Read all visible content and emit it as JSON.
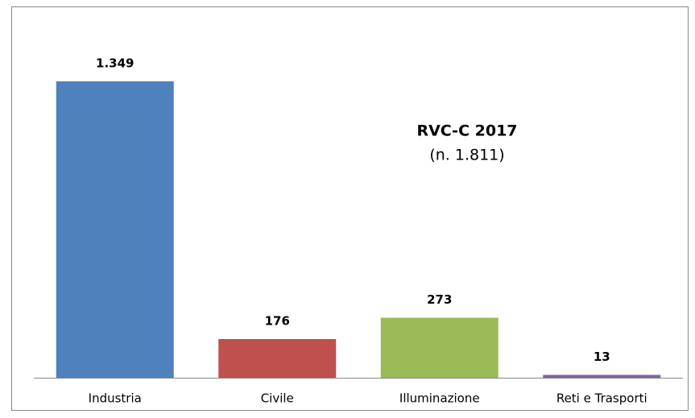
{
  "chart_data": {
    "type": "bar",
    "title": "RVC-C 2017",
    "subtitle": "(n. 1.811)",
    "categories": [
      "Industria",
      "Civile",
      "Illuminazione",
      "Reti e Trasporti"
    ],
    "values": [
      1349,
      176,
      273,
      13
    ],
    "value_labels": [
      "1.349",
      "176",
      "273",
      "13"
    ],
    "colors": [
      "#4f81bd",
      "#c0504d",
      "#9bbb59",
      "#8064a2"
    ]
  }
}
